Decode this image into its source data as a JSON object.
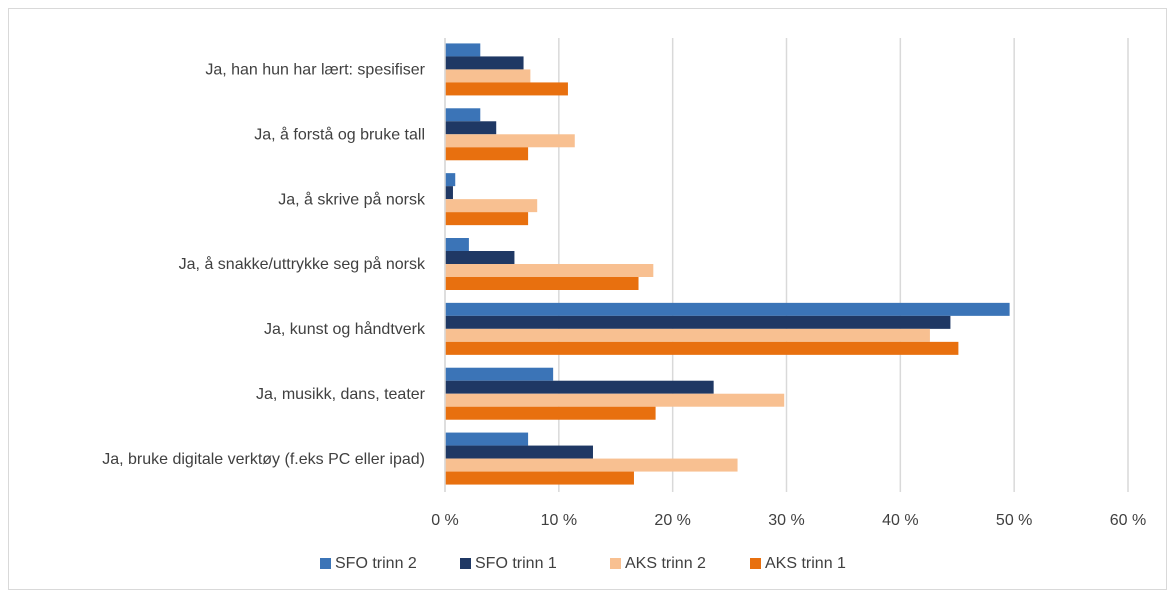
{
  "chart_data": {
    "type": "bar",
    "orientation": "horizontal",
    "categories": [
      "Ja, han hun har lært: spesifiser",
      "Ja, å forstå og bruke tall",
      "Ja, å skrive på norsk",
      "Ja, å snakke/uttrykke seg på norsk",
      "Ja, kunst og håndtverk",
      "Ja, musikk, dans, teater",
      "Ja, bruke digitale verktøy (f.eks PC eller ipad)"
    ],
    "series": [
      {
        "name": "SFO trinn 2",
        "color": "#3b74b7",
        "values": [
          3.1,
          3.1,
          0.9,
          2.1,
          49.6,
          9.5,
          7.3
        ]
      },
      {
        "name": "SFO trinn 1",
        "color": "#1f3864",
        "values": [
          6.9,
          4.5,
          0.7,
          6.1,
          44.4,
          23.6,
          13.0
        ]
      },
      {
        "name": "AKS trinn 2",
        "color": "#f8c091",
        "values": [
          7.5,
          11.4,
          8.1,
          18.3,
          42.6,
          29.8,
          25.7
        ]
      },
      {
        "name": "AKS trinn 1",
        "color": "#e8700f",
        "values": [
          10.8,
          7.3,
          7.3,
          17.0,
          45.1,
          18.5,
          16.6
        ]
      }
    ],
    "xlim": [
      0,
      60
    ],
    "xticks": [
      {
        "value": 0,
        "label": "0 %"
      },
      {
        "value": 10,
        "label": "10 %"
      },
      {
        "value": 20,
        "label": "20 %"
      },
      {
        "value": 30,
        "label": "30 %"
      },
      {
        "value": 40,
        "label": "40 %"
      },
      {
        "value": 50,
        "label": "50 %"
      },
      {
        "value": 60,
        "label": "60 %"
      }
    ],
    "grid": true,
    "legend": "bottom"
  }
}
